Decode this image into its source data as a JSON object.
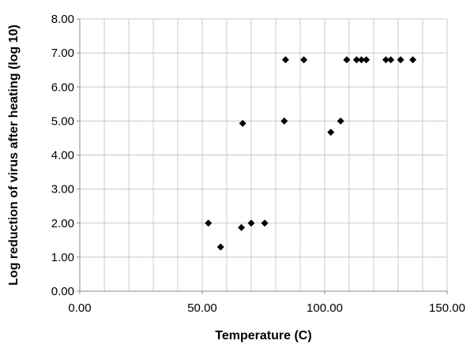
{
  "chart_data": {
    "type": "scatter",
    "title": "",
    "xlabel": "Temperature (C)",
    "ylabel": "Log reduction of virus after heating (log 10)",
    "xlim": [
      0,
      150
    ],
    "ylim": [
      0,
      8
    ],
    "x_ticks": [
      0,
      50,
      100,
      150
    ],
    "x_tick_labels": [
      "0.00",
      "50.00",
      "100.00",
      "150.00"
    ],
    "y_ticks": [
      0,
      1,
      2,
      3,
      4,
      5,
      6,
      7,
      8
    ],
    "y_tick_labels": [
      "0.00",
      "1.00",
      "2.00",
      "3.00",
      "4.00",
      "5.00",
      "6.00",
      "7.00",
      "8.00"
    ],
    "grid": true,
    "marker": "diamond",
    "marker_color": "#000000",
    "points": [
      {
        "x": 52.5,
        "y": 2.0
      },
      {
        "x": 57.5,
        "y": 1.3
      },
      {
        "x": 66.0,
        "y": 1.87
      },
      {
        "x": 66.5,
        "y": 4.93
      },
      {
        "x": 70.0,
        "y": 2.0
      },
      {
        "x": 75.5,
        "y": 2.0
      },
      {
        "x": 83.5,
        "y": 5.0
      },
      {
        "x": 84.0,
        "y": 6.8
      },
      {
        "x": 91.5,
        "y": 6.8
      },
      {
        "x": 102.5,
        "y": 4.67
      },
      {
        "x": 106.5,
        "y": 5.0
      },
      {
        "x": 109.0,
        "y": 6.8
      },
      {
        "x": 113.0,
        "y": 6.8
      },
      {
        "x": 115.0,
        "y": 6.8
      },
      {
        "x": 117.0,
        "y": 6.8
      },
      {
        "x": 125.0,
        "y": 6.8
      },
      {
        "x": 127.0,
        "y": 6.8
      },
      {
        "x": 131.0,
        "y": 6.8
      },
      {
        "x": 136.0,
        "y": 6.8
      }
    ]
  }
}
